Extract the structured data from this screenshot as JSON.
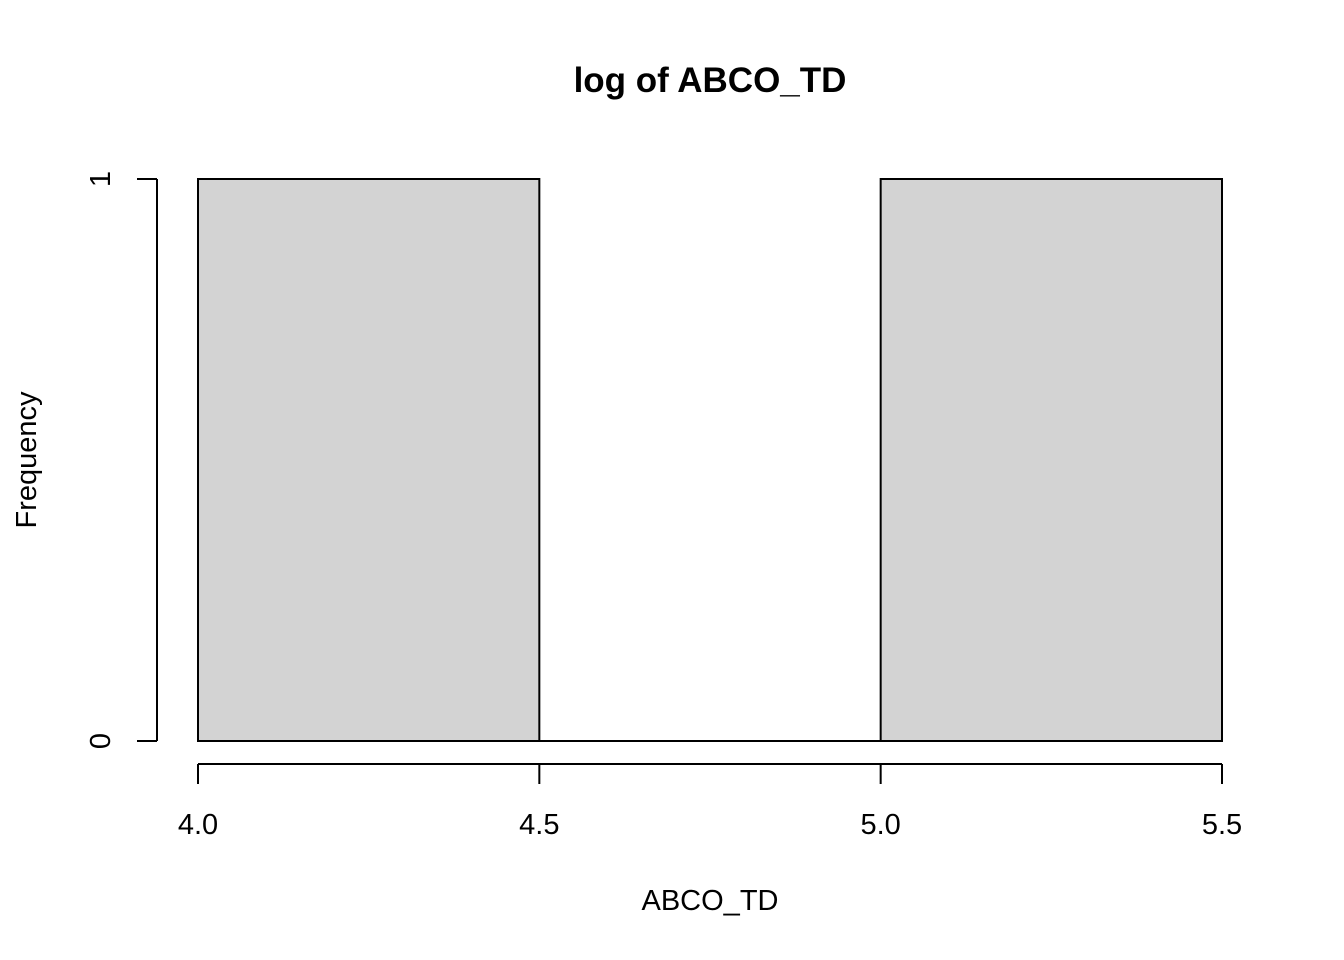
{
  "chart_data": {
    "type": "bar",
    "subtype": "histogram",
    "title": "log of ABCO_TD",
    "xlabel": "ABCO_TD",
    "ylabel": "Frequency",
    "bins": [
      {
        "start": 4.0,
        "end": 4.5,
        "count": 1
      },
      {
        "start": 4.5,
        "end": 5.0,
        "count": 0
      },
      {
        "start": 5.0,
        "end": 5.5,
        "count": 1
      }
    ],
    "xlim": [
      4.0,
      5.5
    ],
    "ylim": [
      0,
      1
    ],
    "x_ticks": [
      4.0,
      4.5,
      5.0,
      5.5
    ],
    "x_tick_labels": [
      "4.0",
      "4.5",
      "5.0",
      "5.5"
    ],
    "y_ticks": [
      0,
      1
    ],
    "y_tick_labels": [
      "0",
      "1"
    ],
    "bar_color": "#d3d3d3",
    "grid": false,
    "legend": "none"
  }
}
